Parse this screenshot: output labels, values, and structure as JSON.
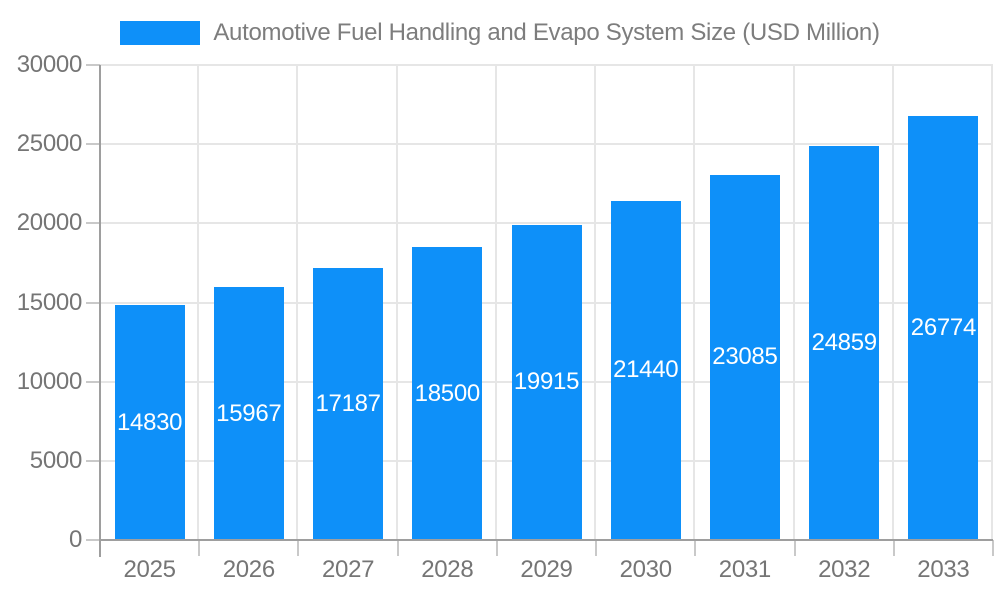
{
  "chart_data": {
    "type": "bar",
    "title": "Automotive Fuel Handling and Evapo System Size (USD Million)",
    "legend_position": "top",
    "categories": [
      "2025",
      "2026",
      "2027",
      "2028",
      "2029",
      "2030",
      "2031",
      "2032",
      "2033"
    ],
    "values": [
      14830,
      15967,
      17187,
      18500,
      19915,
      21440,
      23085,
      24859,
      26774
    ],
    "xlabel": "",
    "ylabel": "",
    "ylim": [
      0,
      30000
    ],
    "yticks": [
      0,
      5000,
      10000,
      15000,
      20000,
      25000,
      30000
    ],
    "grid": true,
    "value_labels_inside_bars": true
  },
  "colors": {
    "bar": "#0e90f9",
    "bar_value_text": "#ffffff",
    "axis_tick_text": "#757575",
    "title_text": "#7d7d7d",
    "gridline": "#e6e6e6",
    "axis_line": "#9e9e9e",
    "tick_mark": "#c9c9c9",
    "background": "#ffffff"
  }
}
